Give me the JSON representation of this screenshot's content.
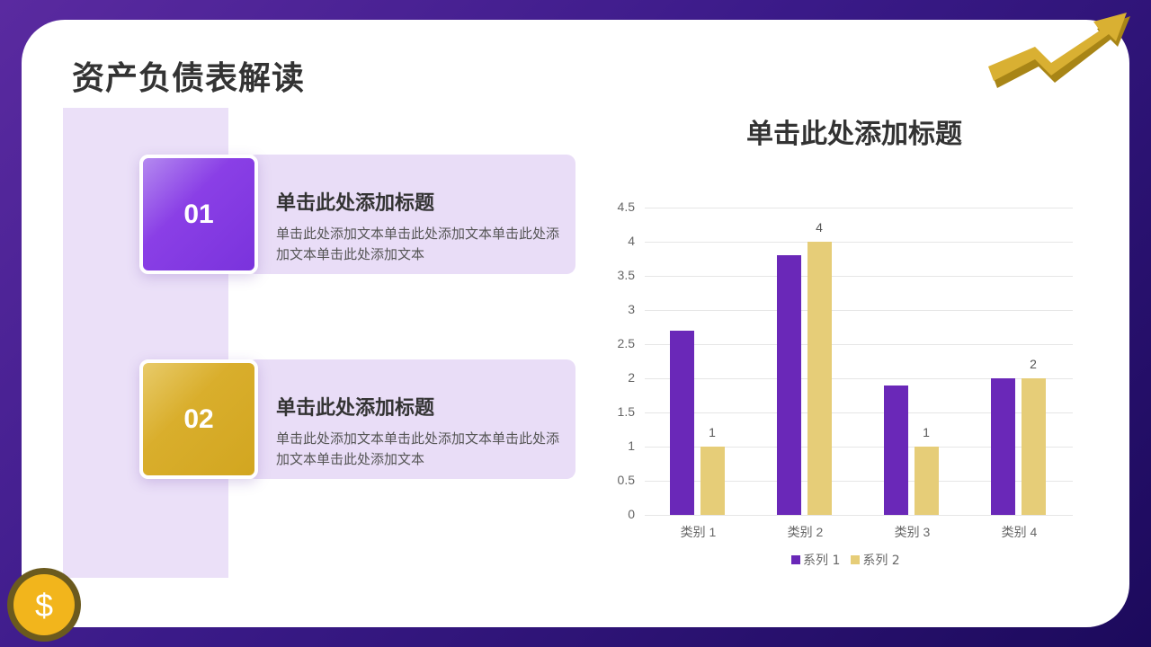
{
  "page": {
    "title": "资产负债表解读"
  },
  "items": [
    {
      "number": "01",
      "title": "单击此处添加标题",
      "text": "单击此处添加文本单击此处添加文本单击此处添加文本单击此处添加文本",
      "color": "#8a3fe6"
    },
    {
      "number": "02",
      "title": "单击此处添加标题",
      "text": "单击此处添加文本单击此处添加文本单击此处添加文本单击此处添加文本",
      "color": "#d9ae2c"
    }
  ],
  "icons": {
    "top_right": "rising-arrow-icon",
    "bottom_left": "dollar-coin-icon",
    "dollar_glyph": "$"
  },
  "colors": {
    "series1": "#6a28b8",
    "series2": "#e6cd78",
    "background_dark": "#1c0a5c",
    "accent_gold": "#d9ae2c"
  },
  "chart_data": {
    "type": "bar",
    "title": "单击此处添加标题",
    "categories": [
      "类别 1",
      "类别 2",
      "类别 3",
      "类别 4"
    ],
    "series": [
      {
        "name": "系列 1",
        "values": [
          2.7,
          3.8,
          1.9,
          2.0
        ],
        "color": "#6a28b8",
        "data_labels": false
      },
      {
        "name": "系列 2",
        "values": [
          1,
          4,
          1,
          2
        ],
        "color": "#e6cd78",
        "data_labels": true
      }
    ],
    "yticks": [
      "0",
      "0.5",
      "1",
      "1.5",
      "2",
      "2.5",
      "3",
      "3.5",
      "4",
      "4.5"
    ],
    "ylim": [
      0,
      4.5
    ],
    "xlabel": "",
    "ylabel": "",
    "grid": true,
    "legend_position": "bottom"
  }
}
